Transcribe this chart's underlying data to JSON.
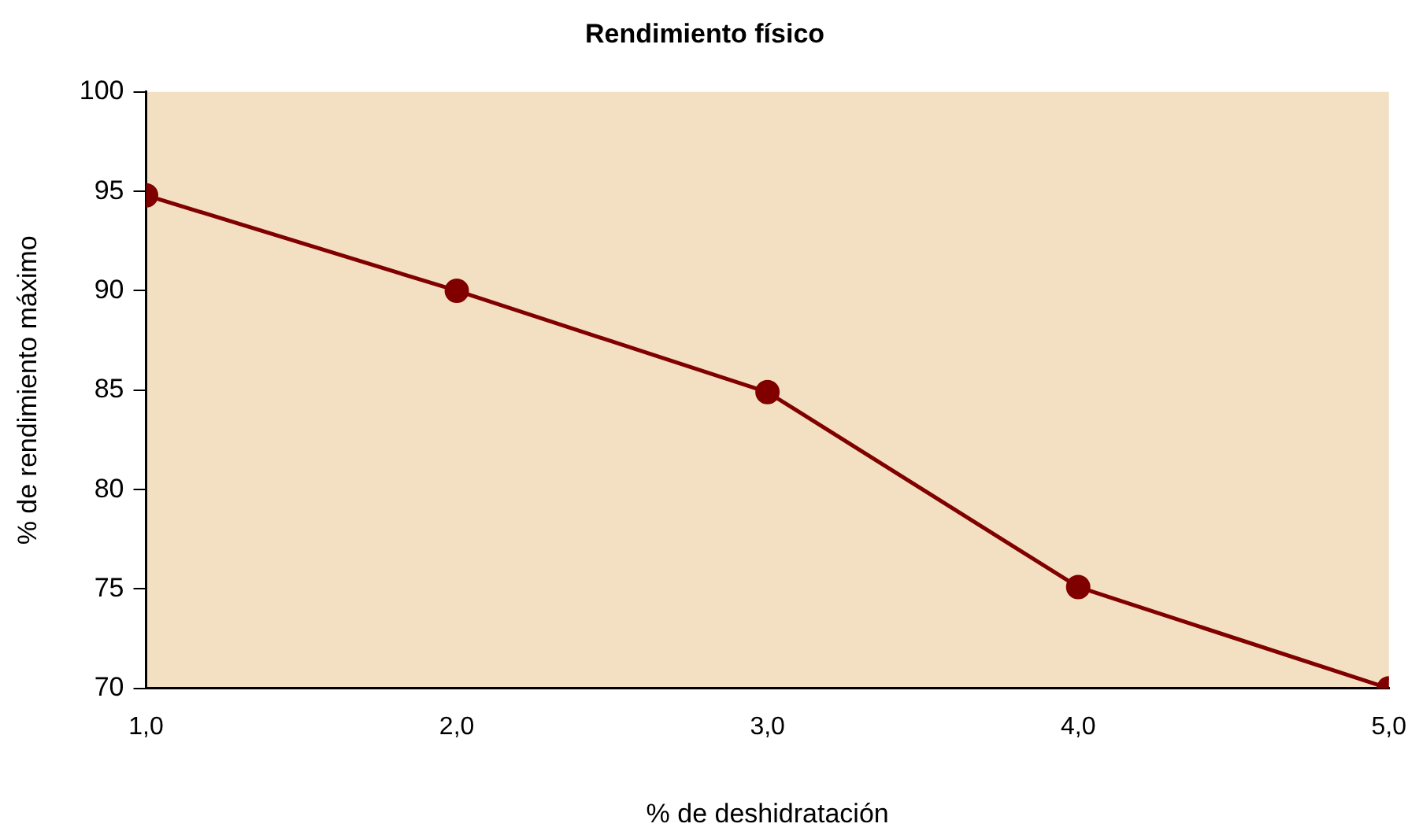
{
  "chart_data": {
    "type": "line",
    "title": "Rendimiento físico",
    "xlabel": "% de deshidratación",
    "ylabel": "% de rendimiento máximo",
    "x": [
      1,
      2,
      3,
      4,
      5
    ],
    "series": [
      {
        "color": "#800000",
        "values": [
          94.8,
          90,
          84.9,
          75.1,
          70
        ]
      }
    ],
    "xlim": [
      1,
      5
    ],
    "xticks": [
      {
        "value": 1,
        "label": "1,0"
      },
      {
        "value": 2,
        "label": "2,0"
      },
      {
        "value": 3,
        "label": "3,0"
      },
      {
        "value": 4,
        "label": "4,0"
      },
      {
        "value": 5,
        "label": "5,0"
      }
    ],
    "ylim": [
      70,
      100
    ],
    "yticks": [
      70,
      75,
      80,
      85,
      90,
      95,
      100
    ],
    "grid": false,
    "legend": false,
    "marker": "circle",
    "line_style": "solid"
  }
}
